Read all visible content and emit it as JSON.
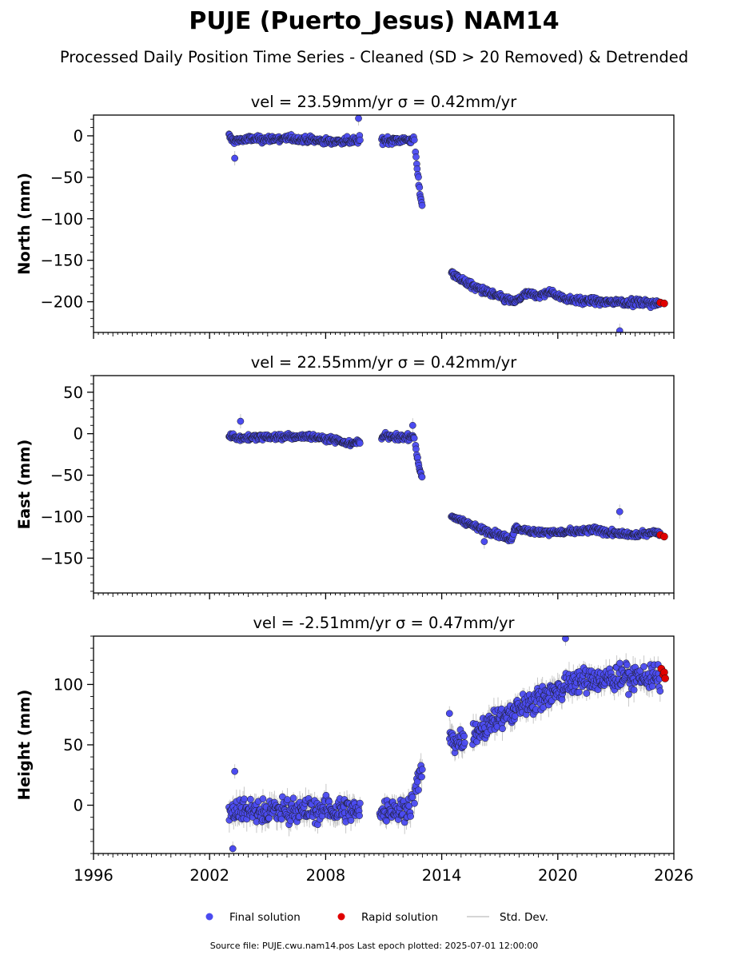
{
  "title": "PUJE (Puerto_Jesus) NAM14",
  "subtitle": "Processed Daily Position Time Series - Cleaned (SD > 20 Removed) & Detrended",
  "footer": "Source file: PUJE.cwu.nam14.pos  Last epoch plotted: 2025-07-01 12:00:00",
  "legend": {
    "placement": "bottom-center",
    "final": "Final solution",
    "rapid": "Rapid solution",
    "std": "Std. Dev."
  },
  "colors": {
    "final": "#4b4bf0",
    "rapid": "#e00000",
    "std": "#c8c8c8",
    "edge": "#1a1a1a"
  },
  "chart_data": [
    {
      "type": "scatter",
      "subtitle": "vel = 23.59mm/yr   σ = 0.42mm/yr",
      "ylabel": "North (mm)",
      "xlim": [
        1996,
        2026
      ],
      "ylim": [
        -237,
        25
      ],
      "yticks": [
        0,
        -50,
        -100,
        -150,
        -200
      ],
      "xticks": [
        1996,
        2002,
        2008,
        2014,
        2020,
        2026
      ],
      "segments": [
        {
          "x": [
            2003.0,
            2003.2,
            2003.6,
            2004.0,
            2005.0,
            2006.0,
            2007.0,
            2007.8,
            2008.4,
            2009.0,
            2009.5,
            2009.8
          ],
          "y": [
            0,
            -6,
            -5,
            -4,
            -4,
            -3,
            -5,
            -6,
            -7,
            -6,
            -6,
            -5
          ]
        },
        {
          "x": [
            2010.9,
            2011.5,
            2012.0,
            2012.4,
            2012.6
          ],
          "y": [
            -5,
            -5,
            -5,
            -5,
            -6
          ]
        },
        {
          "x": [
            2012.65,
            2012.75,
            2012.85,
            2012.95,
            2013.0
          ],
          "y": [
            -20,
            -45,
            -65,
            -80,
            -87
          ]
        },
        {
          "x": [
            2014.5,
            2014.8,
            2015.2,
            2015.8,
            2016.5,
            2017.2,
            2017.8,
            2018.4,
            2019.0,
            2019.6,
            2020.2,
            2021.0,
            2022.0,
            2023.0,
            2024.0,
            2025.0,
            2025.3
          ],
          "y": [
            -163,
            -170,
            -176,
            -183,
            -190,
            -196,
            -200,
            -190,
            -193,
            -188,
            -195,
            -198,
            -200,
            -200,
            -201,
            -202,
            -202
          ]
        }
      ],
      "outliers": {
        "x": [
          2003.3,
          2009.7,
          2023.2
        ],
        "y": [
          -27,
          21,
          -235
        ]
      },
      "rapid": {
        "x": [
          2025.3,
          2025.5
        ],
        "y": [
          -201,
          -202
        ]
      },
      "noise": 3.0,
      "std": 3.5
    },
    {
      "type": "scatter",
      "subtitle": "vel = 22.55mm/yr   σ = 0.42mm/yr",
      "ylabel": "East (mm)",
      "xlim": [
        1996,
        2026
      ],
      "ylim": [
        -192,
        70
      ],
      "yticks": [
        50,
        0,
        -50,
        -100,
        -150
      ],
      "xticks": [
        1996,
        2002,
        2008,
        2014,
        2020,
        2026
      ],
      "segments": [
        {
          "x": [
            2003.0,
            2003.5,
            2004.0,
            2005.0,
            2006.0,
            2007.0,
            2007.8,
            2008.5,
            2009.0,
            2009.5,
            2009.8
          ],
          "y": [
            -2,
            -5,
            -5,
            -4,
            -4,
            -3,
            -5,
            -7,
            -10,
            -12,
            -8
          ]
        },
        {
          "x": [
            2010.9,
            2011.5,
            2012.0,
            2012.4,
            2012.6
          ],
          "y": [
            -3,
            -4,
            -5,
            -3,
            -5
          ]
        },
        {
          "x": [
            2012.65,
            2012.75,
            2012.85,
            2012.95,
            2013.0
          ],
          "y": [
            -15,
            -30,
            -42,
            -50,
            -55
          ]
        },
        {
          "x": [
            2014.5,
            2014.8,
            2015.2,
            2015.8,
            2016.4,
            2017.0,
            2017.6,
            2017.8,
            2018.3,
            2019.0,
            2020.0,
            2021.0,
            2022.0,
            2023.0,
            2024.0,
            2025.0,
            2025.3
          ],
          "y": [
            -100,
            -103,
            -106,
            -113,
            -118,
            -122,
            -128,
            -113,
            -117,
            -118,
            -119,
            -118,
            -116,
            -121,
            -122,
            -118,
            -120
          ]
        }
      ],
      "outliers": {
        "x": [
          2003.6,
          2012.5,
          2023.2,
          2016.2
        ],
        "y": [
          15,
          10,
          -94,
          -130
        ]
      },
      "rapid": {
        "x": [
          2025.3,
          2025.5
        ],
        "y": [
          -122,
          -124
        ]
      },
      "noise": 2.5,
      "std": 3.0
    },
    {
      "type": "scatter",
      "subtitle": "vel = -2.51mm/yr   σ = 0.47mm/yr",
      "ylabel": "Height (mm)",
      "xlim": [
        1996,
        2026
      ],
      "ylim": [
        -40,
        140
      ],
      "yticks": [
        100,
        50,
        0
      ],
      "xticks": [
        1996,
        2002,
        2008,
        2014,
        2020,
        2026
      ],
      "xticklabels": [
        "1996",
        "2002",
        "2008",
        "2014",
        "2020",
        "2026"
      ],
      "segments": [
        {
          "x": [
            2003.0,
            2004.0,
            2005.0,
            2006.0,
            2007.0,
            2008.0,
            2008.6,
            2009.2,
            2009.8
          ],
          "y": [
            -5,
            -3,
            -5,
            -3,
            -5,
            -3,
            -5,
            -3,
            -5
          ]
        },
        {
          "x": [
            2010.8,
            2011.5,
            2012.0,
            2012.5
          ],
          "y": [
            -5,
            -4,
            -3,
            0
          ]
        },
        {
          "x": [
            2012.6,
            2012.8,
            2013.0
          ],
          "y": [
            10,
            20,
            32
          ]
        },
        {
          "x": [
            2014.4,
            2014.8,
            2015.2
          ],
          "y": [
            58,
            53,
            52
          ]
        },
        {
          "x": [
            2015.6,
            2016.0,
            2017.0,
            2018.0,
            2019.0,
            2020.0,
            2021.0,
            2022.0,
            2023.0,
            2024.0,
            2025.0,
            2025.3
          ],
          "y": [
            55,
            65,
            72,
            80,
            88,
            95,
            103,
            103,
            105,
            107,
            105,
            104
          ]
        }
      ],
      "outliers": {
        "x": [
          2003.3,
          2003.2,
          2020.4,
          2014.4
        ],
        "y": [
          28,
          -36,
          138,
          76
        ]
      },
      "rapid": {
        "x": [
          2025.35,
          2025.45,
          2025.5,
          2025.55
        ],
        "y": [
          113,
          108,
          110,
          105
        ]
      },
      "noise": 7.0,
      "std": 7.0
    }
  ]
}
